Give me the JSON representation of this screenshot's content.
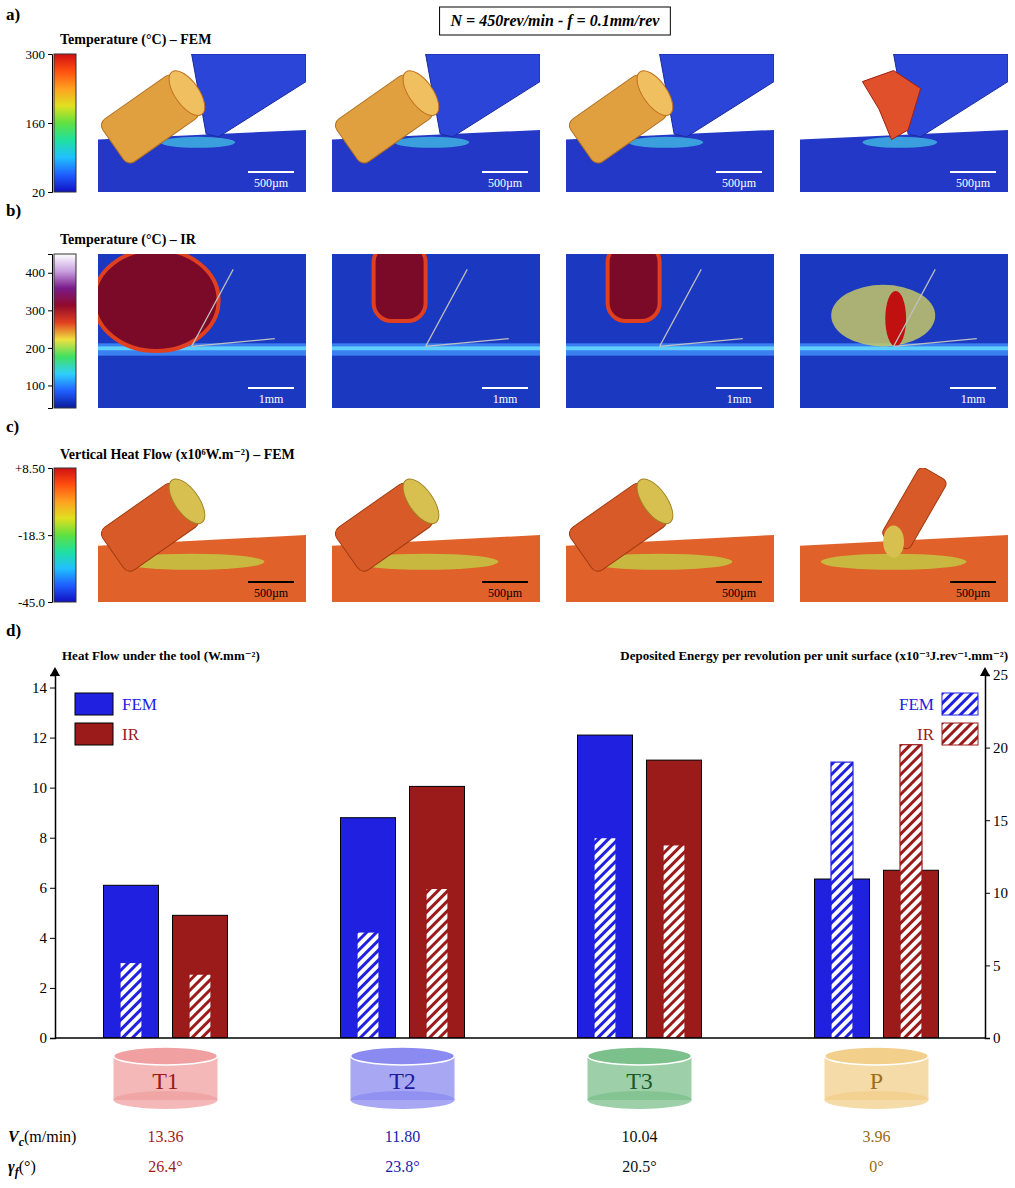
{
  "header": {
    "title": "N = 450rev/min  -  f = 0.1mm/rev"
  },
  "panels": [
    {
      "letter": "a)",
      "title": "Temperature (°C) – FEM",
      "colorbar": {
        "range": [
          20,
          300
        ],
        "ticks": [
          20,
          160,
          300
        ]
      },
      "scale_bar": "500µm"
    },
    {
      "letter": "b)",
      "title": "Temperature (°C) – IR",
      "colorbar": {
        "range": [
          40,
          450
        ],
        "ticks": [
          100,
          200,
          300,
          400
        ]
      },
      "scale_bar": "1mm"
    },
    {
      "letter": "c)",
      "title": "Vertical Heat Flow (x10⁶W.m⁻²) – FEM",
      "colorbar": {
        "range": [
          -45,
          8.5
        ],
        "ticks": [
          {
            "value": -45,
            "label": "-45.0"
          },
          -18.3,
          {
            "value": 8.5,
            "label": "+8.50"
          }
        ]
      },
      "scale_bar": "500µm"
    }
  ],
  "chart_data": {
    "type": "bar",
    "letter": "d)",
    "ylabel": "Heat Flow under the tool (W.mm⁻²)",
    "y2label": "Deposited Energy per revolution per unit surface (x10⁻³J.rev⁻¹.mm⁻²)",
    "categories": [
      "T1",
      "T2",
      "T3",
      "P"
    ],
    "series": [
      {
        "name": "FEM",
        "color": "#2020e0",
        "values": [
          6.1,
          8.8,
          12.1,
          6.35
        ]
      },
      {
        "name": "IR",
        "color": "#9b1a1a",
        "values": [
          4.9,
          10.05,
          11.1,
          6.7
        ]
      },
      {
        "name": "FEM",
        "color": "#2020e0",
        "axis": "y2",
        "values": [
          5.2,
          7.3,
          13.8,
          19.0
        ]
      },
      {
        "name": "IR",
        "color": "#9b1a1a",
        "axis": "y2",
        "values": [
          4.4,
          10.3,
          13.3,
          20.2
        ]
      }
    ],
    "ylim": [
      0,
      14.5
    ],
    "yticks": [
      0,
      2,
      4,
      6,
      8,
      10,
      12,
      14
    ],
    "y2lim": [
      0,
      25
    ],
    "y2ticks": [
      0,
      5,
      10,
      15,
      20,
      25
    ],
    "legend": "top"
  },
  "category_badges": {
    "colors": [
      "#f0a0a0",
      "#8a8af0",
      "#7cc08c",
      "#f2cf8a"
    ],
    "text_colors": [
      "#9b1a1a",
      "#1a1a9b",
      "#1a5a2a",
      "#9a7020"
    ]
  },
  "conditions": [
    {
      "symbol": "V",
      "subscript": "c",
      "unit": "(m/min)",
      "values": [
        "13.36",
        "11.80",
        "10.04",
        "3.96"
      ]
    },
    {
      "symbol": "γ",
      "subscript": "f",
      "unit": "(°)",
      "values": [
        "26.4°",
        "23.8°",
        "20.5°",
        "0°"
      ]
    }
  ],
  "conditions_colors": [
    "#a01c1c",
    "#1c1cb0",
    "#111111",
    "#9a6a10"
  ]
}
